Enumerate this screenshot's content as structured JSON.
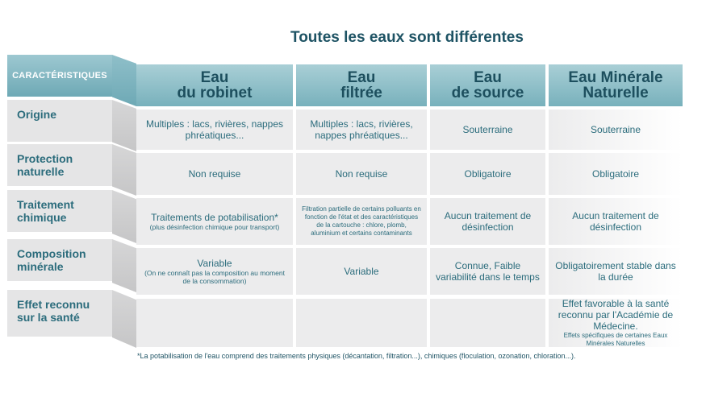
{
  "title": "Toutes les eaux sont différentes",
  "header": {
    "characteristics": "CARACTÉRISTIQUES",
    "columns": [
      {
        "line1": "Eau",
        "line2": "du robinet"
      },
      {
        "line1": "Eau",
        "line2": "filtrée"
      },
      {
        "line1": "Eau",
        "line2": "de source"
      },
      {
        "line1": "Eau Minérale",
        "line2": "Naturelle"
      }
    ]
  },
  "rows": [
    {
      "label": "Origine",
      "cells": [
        {
          "main": "Multiples : lacs, rivières, nappes phréatiques...",
          "note": ""
        },
        {
          "main": "Multiples : lacs, rivières, nappes phréatiques...",
          "note": ""
        },
        {
          "main": "Souterraine",
          "note": ""
        },
        {
          "main": "Souterraine",
          "note": ""
        }
      ]
    },
    {
      "label": "Protection naturelle",
      "cells": [
        {
          "main": "Non requise",
          "note": ""
        },
        {
          "main": "Non requise",
          "note": ""
        },
        {
          "main": "Obligatoire",
          "note": ""
        },
        {
          "main": "Obligatoire",
          "note": ""
        }
      ]
    },
    {
      "label": "Traitement chimique",
      "cells": [
        {
          "main": "Traitements de potabilisation*",
          "note": "(plus désinfection chimique pour transport)"
        },
        {
          "main": "",
          "note": "Filtration partielle de certains polluants en fonction de l'état et des caractéristiques de la cartouche : chlore, plomb, aluminium et certains contaminants"
        },
        {
          "main": "Aucun traitement de désinfection",
          "note": ""
        },
        {
          "main": "Aucun traitement de désinfection",
          "note": ""
        }
      ]
    },
    {
      "label": "Composition minérale",
      "cells": [
        {
          "main": "Variable",
          "note": "(On ne connaît pas la composition au moment de la consommation)"
        },
        {
          "main": "Variable",
          "note": ""
        },
        {
          "main": "Connue, Faible variabilité dans le temps",
          "note": ""
        },
        {
          "main": "Obligatoirement stable dans la durée",
          "note": ""
        }
      ]
    },
    {
      "label": "Effet reconnu sur la santé",
      "cells": [
        {
          "main": "",
          "note": ""
        },
        {
          "main": "",
          "note": ""
        },
        {
          "main": "",
          "note": ""
        },
        {
          "main": "Effet favorable à la santé reconnu par l'Académie de Médecine.",
          "note": "Effets spécifiques de certaines Eaux Minérales Naturelles"
        }
      ]
    }
  ],
  "footnote": "*La potabilisation de l'eau comprend des traitements physiques (décantation, filtration...), chimiques (floculation, ozonation, chloration...)."
}
